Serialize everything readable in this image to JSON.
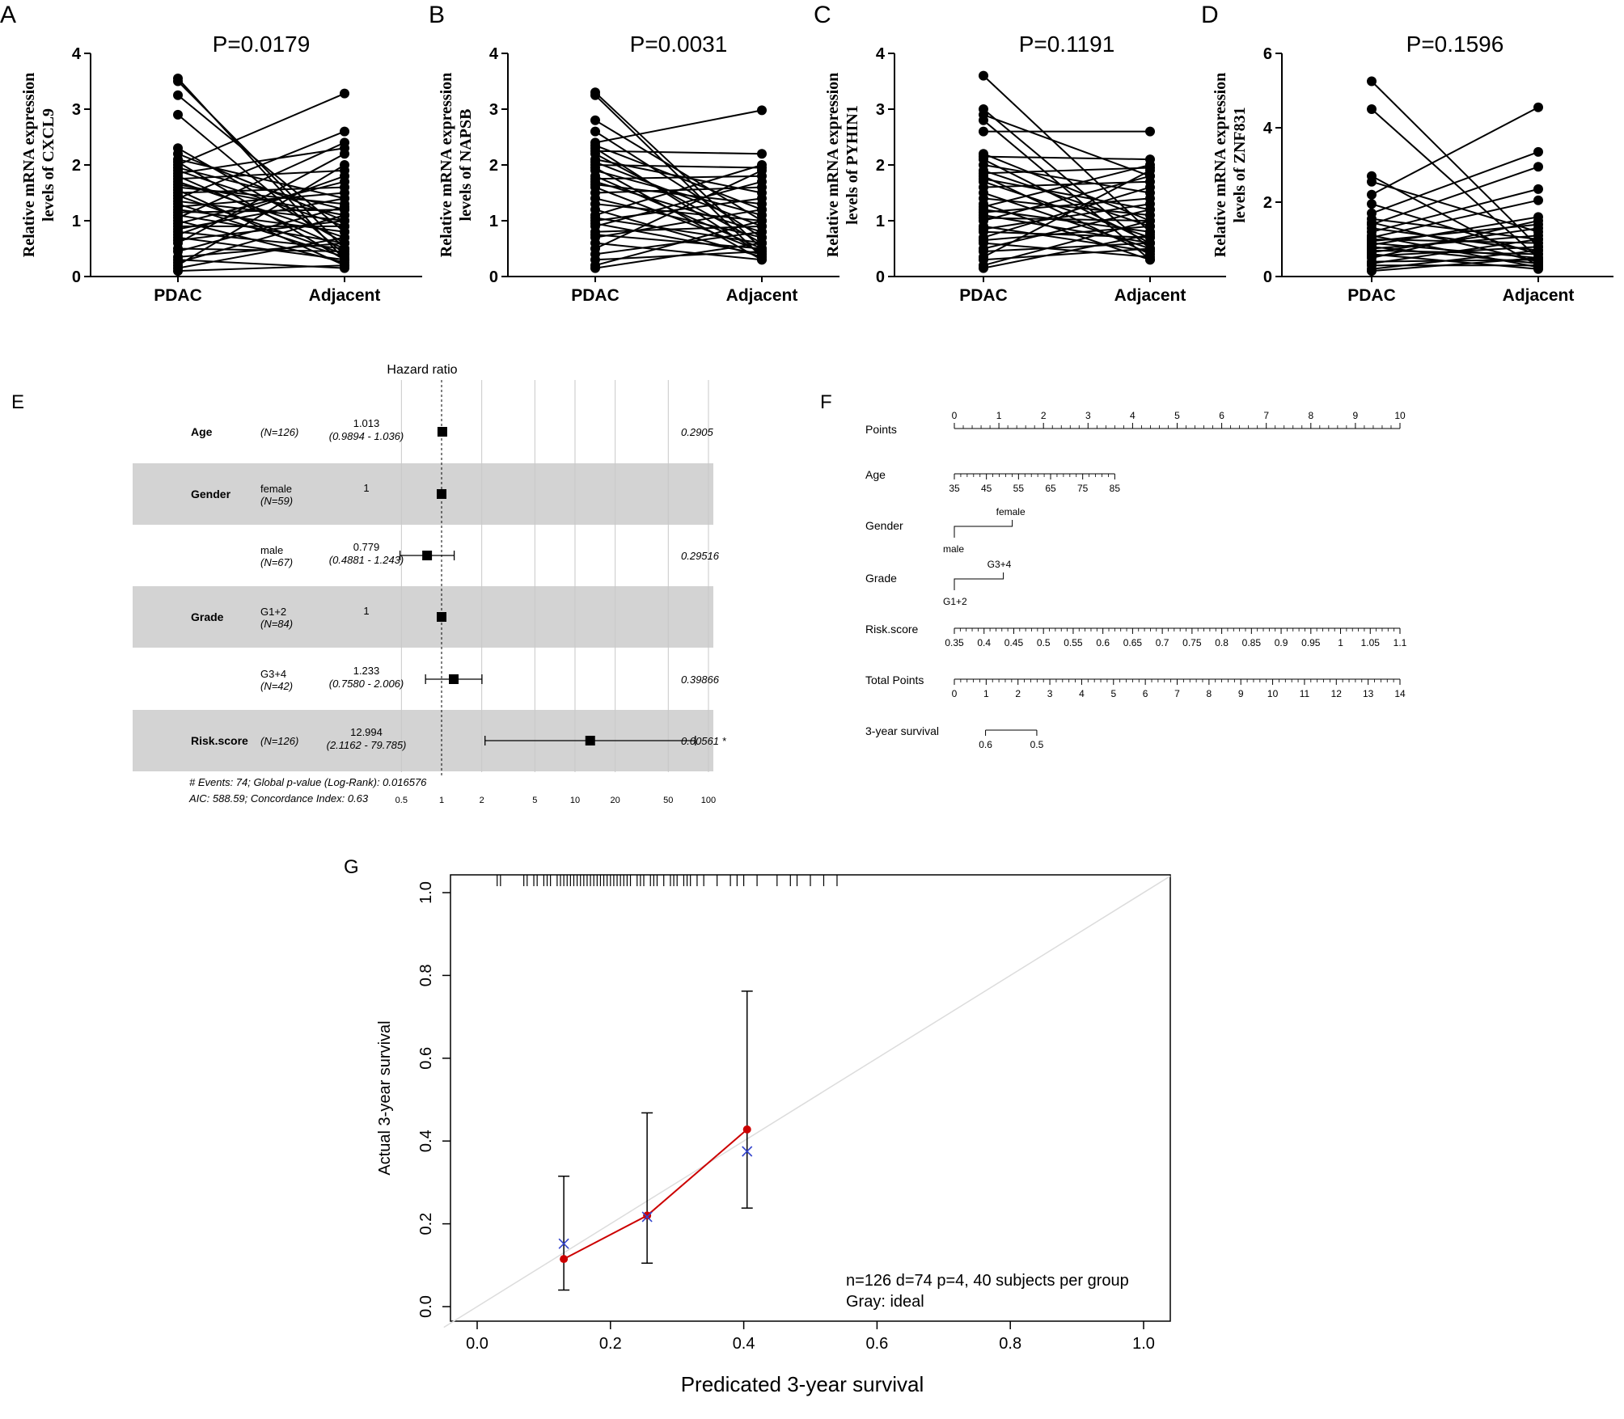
{
  "chart_data": [
    {
      "type": "paired-line",
      "panel_label": "A",
      "title": "P=0.0179",
      "ylabel_line1": "Relative mRNA expression",
      "ylabel_line2": "levels of CXCL9",
      "categories": [
        "PDAC",
        "Adjacent"
      ],
      "ylim": [
        0,
        4
      ],
      "yticks": [
        "0",
        "1",
        "2",
        "3",
        "4"
      ],
      "pairs": [
        [
          3.55,
          0.3
        ],
        [
          3.5,
          0.5
        ],
        [
          3.25,
          0.8
        ],
        [
          2.9,
          0.4
        ],
        [
          2.3,
          0.6
        ],
        [
          2.2,
          1.0
        ],
        [
          2.1,
          1.4
        ],
        [
          2.05,
          0.3
        ],
        [
          2.0,
          3.28
        ],
        [
          1.95,
          1.2
        ],
        [
          1.9,
          0.9
        ],
        [
          1.85,
          2.3
        ],
        [
          1.8,
          0.5
        ],
        [
          1.75,
          1.9
        ],
        [
          1.7,
          0.7
        ],
        [
          1.65,
          1.1
        ],
        [
          1.6,
          1.3
        ],
        [
          1.55,
          0.2
        ],
        [
          1.5,
          1.6
        ],
        [
          1.45,
          0.4
        ],
        [
          1.4,
          2.6
        ],
        [
          1.35,
          1.0
        ],
        [
          1.3,
          0.35
        ],
        [
          1.25,
          1.5
        ],
        [
          1.2,
          0.8
        ],
        [
          1.15,
          1.2
        ],
        [
          1.1,
          0.6
        ],
        [
          1.05,
          2.4
        ],
        [
          1.0,
          0.25
        ],
        [
          0.95,
          1.7
        ],
        [
          0.9,
          0.9
        ],
        [
          0.85,
          1.4
        ],
        [
          0.8,
          0.5
        ],
        [
          0.75,
          1.8
        ],
        [
          0.7,
          0.3
        ],
        [
          0.65,
          1.0
        ],
        [
          0.6,
          2.2
        ],
        [
          0.5,
          0.45
        ],
        [
          0.45,
          1.25
        ],
        [
          0.35,
          0.6
        ],
        [
          0.3,
          0.15
        ],
        [
          0.25,
          1.1
        ],
        [
          0.2,
          2.0
        ],
        [
          0.15,
          0.7
        ],
        [
          0.1,
          0.2
        ]
      ]
    },
    {
      "type": "paired-line",
      "panel_label": "B",
      "title": "P=0.0031",
      "ylabel_line1": "Relative mRNA expression",
      "ylabel_line2": "levels of NAPSB",
      "categories": [
        "PDAC",
        "Adjacent"
      ],
      "ylim": [
        0,
        4
      ],
      "yticks": [
        "0",
        "1",
        "2",
        "3",
        "4"
      ],
      "pairs": [
        [
          3.3,
          0.5
        ],
        [
          3.25,
          0.35
        ],
        [
          2.8,
          1.0
        ],
        [
          2.6,
          0.7
        ],
        [
          2.4,
          2.98
        ],
        [
          2.35,
          1.2
        ],
        [
          2.3,
          0.4
        ],
        [
          2.25,
          2.2
        ],
        [
          2.2,
          0.6
        ],
        [
          2.1,
          1.5
        ],
        [
          2.05,
          0.9
        ],
        [
          2.0,
          1.95
        ],
        [
          1.95,
          0.3
        ],
        [
          1.9,
          1.1
        ],
        [
          1.8,
          0.5
        ],
        [
          1.75,
          1.8
        ],
        [
          1.7,
          0.8
        ],
        [
          1.65,
          1.3
        ],
        [
          1.6,
          0.45
        ],
        [
          1.5,
          1.6
        ],
        [
          1.4,
          0.7
        ],
        [
          1.3,
          1.0
        ],
        [
          1.2,
          0.35
        ],
        [
          1.1,
          2.0
        ],
        [
          1.05,
          0.6
        ],
        [
          1.0,
          1.4
        ],
        [
          0.95,
          0.4
        ],
        [
          0.9,
          1.7
        ],
        [
          0.8,
          0.9
        ],
        [
          0.75,
          0.5
        ],
        [
          0.7,
          1.2
        ],
        [
          0.6,
          0.3
        ],
        [
          0.5,
          1.9
        ],
        [
          0.4,
          0.8
        ],
        [
          0.3,
          0.45
        ],
        [
          0.2,
          1.0
        ],
        [
          0.15,
          0.6
        ]
      ]
    },
    {
      "type": "paired-line",
      "panel_label": "C",
      "title": "P=0.1191",
      "ylabel_line1": "Relative mRNA expression",
      "ylabel_line2": "levels of PYHIN1",
      "categories": [
        "PDAC",
        "Adjacent"
      ],
      "ylim": [
        0,
        4
      ],
      "yticks": [
        "0",
        "1",
        "2",
        "3",
        "4"
      ],
      "pairs": [
        [
          3.6,
          0.8
        ],
        [
          3.0,
          0.5
        ],
        [
          2.9,
          1.8
        ],
        [
          2.8,
          0.3
        ],
        [
          2.6,
          2.6
        ],
        [
          2.2,
          1.0
        ],
        [
          2.15,
          2.1
        ],
        [
          2.1,
          0.6
        ],
        [
          2.0,
          1.5
        ],
        [
          1.9,
          0.9
        ],
        [
          1.85,
          1.95
        ],
        [
          1.8,
          0.4
        ],
        [
          1.75,
          1.2
        ],
        [
          1.7,
          0.7
        ],
        [
          1.6,
          1.7
        ],
        [
          1.5,
          0.5
        ],
        [
          1.4,
          1.1
        ],
        [
          1.3,
          0.3
        ],
        [
          1.25,
          2.0
        ],
        [
          1.2,
          0.8
        ],
        [
          1.15,
          1.4
        ],
        [
          1.1,
          0.6
        ],
        [
          1.05,
          1.0
        ],
        [
          1.0,
          1.8
        ],
        [
          0.9,
          0.45
        ],
        [
          0.85,
          1.3
        ],
        [
          0.8,
          0.7
        ],
        [
          0.7,
          1.6
        ],
        [
          0.65,
          0.9
        ],
        [
          0.6,
          0.35
        ],
        [
          0.5,
          1.2
        ],
        [
          0.45,
          0.6
        ],
        [
          0.35,
          1.9
        ],
        [
          0.3,
          0.5
        ],
        [
          0.2,
          1.0
        ],
        [
          0.15,
          0.75
        ]
      ]
    },
    {
      "type": "paired-line",
      "panel_label": "D",
      "title": "P=0.1596",
      "ylabel_line1": "Relative mRNA expression",
      "ylabel_line2": "levels of ZNF831",
      "categories": [
        "PDAC",
        "Adjacent"
      ],
      "ylim": [
        0,
        6
      ],
      "yticks": [
        "0",
        "2",
        "4",
        "6"
      ],
      "pairs": [
        [
          5.25,
          0.8
        ],
        [
          4.5,
          0.5
        ],
        [
          2.7,
          0.3
        ],
        [
          2.55,
          1.2
        ],
        [
          2.2,
          4.55
        ],
        [
          1.95,
          0.6
        ],
        [
          1.7,
          3.35
        ],
        [
          1.55,
          1.0
        ],
        [
          1.45,
          0.4
        ],
        [
          1.4,
          2.95
        ],
        [
          1.3,
          0.7
        ],
        [
          1.2,
          2.35
        ],
        [
          1.1,
          0.25
        ],
        [
          1.05,
          2.05
        ],
        [
          1.0,
          0.9
        ],
        [
          0.95,
          1.4
        ],
        [
          0.9,
          0.5
        ],
        [
          0.85,
          1.6
        ],
        [
          0.8,
          0.35
        ],
        [
          0.75,
          1.1
        ],
        [
          0.7,
          0.6
        ],
        [
          0.65,
          1.3
        ],
        [
          0.6,
          0.2
        ],
        [
          0.55,
          0.8
        ],
        [
          0.5,
          1.5
        ],
        [
          0.4,
          0.45
        ],
        [
          0.35,
          1.0
        ],
        [
          0.3,
          0.3
        ],
        [
          0.2,
          0.7
        ],
        [
          0.15,
          0.5
        ]
      ]
    },
    {
      "type": "forest",
      "panel_label": "E",
      "title": "Hazard ratio",
      "xscale": "log",
      "xlim": [
        0.5,
        100
      ],
      "xticks": [
        "0.5",
        "1",
        "2",
        "5",
        "10",
        "20",
        "50",
        "100"
      ],
      "rows": [
        {
          "variable": "Age",
          "level": "",
          "n": "(N=126)",
          "hr": 1.013,
          "hr_text": "1.013",
          "ci": [
            0.9894,
            1.036
          ],
          "ci_text": "(0.9894 - 1.036)",
          "p": "0.2905"
        },
        {
          "variable": "Gender",
          "level": "female",
          "n": "(N=59)",
          "hr": 1,
          "hr_text": "1",
          "ci": null,
          "ci_text": "",
          "p": ""
        },
        {
          "variable": "",
          "level": "male",
          "n": "(N=67)",
          "hr": 0.779,
          "hr_text": "0.779",
          "ci": [
            0.4881,
            1.243
          ],
          "ci_text": "(0.4881 - 1.243)",
          "p": "0.29516"
        },
        {
          "variable": "Grade",
          "level": "G1+2",
          "n": "(N=84)",
          "hr": 1,
          "hr_text": "1",
          "ci": null,
          "ci_text": "",
          "p": ""
        },
        {
          "variable": "",
          "level": "G3+4",
          "n": "(N=42)",
          "hr": 1.233,
          "hr_text": "1.233",
          "ci": [
            0.758,
            2.006
          ],
          "ci_text": "(0.7580 - 2.006)",
          "p": "0.39866"
        },
        {
          "variable": "Risk.score",
          "level": "",
          "n": "(N=126)",
          "hr": 12.994,
          "hr_text": "12.994",
          "ci": [
            2.1162,
            79.785
          ],
          "ci_text": "(2.1162 - 79.785)",
          "p": "0.00561 *"
        }
      ],
      "footnote1": "# Events: 74; Global p-value (Log-Rank): 0.016576",
      "footnote2": "AIC: 588.59; Concordance Index: 0.63"
    },
    {
      "type": "nomogram",
      "panel_label": "F",
      "rows": [
        {
          "label": "Points",
          "ticks": [
            "0",
            "1",
            "2",
            "3",
            "4",
            "5",
            "6",
            "7",
            "8",
            "9",
            "10"
          ],
          "span": [
            0,
            10
          ],
          "labels_above": true
        },
        {
          "label": "Age",
          "ticks": [
            "35",
            "45",
            "55",
            "65",
            "75",
            "85"
          ],
          "span": [
            0,
            3.6
          ],
          "labels_above": false
        },
        {
          "label": "Gender",
          "step_low": "male",
          "step_high": "female",
          "span": [
            0,
            1.3
          ]
        },
        {
          "label": "Grade",
          "step_low": "G1+2",
          "step_high": "G3+4",
          "span": [
            0,
            1.1
          ]
        },
        {
          "label": "Risk.score",
          "ticks": [
            "0.35",
            "0.4",
            "0.45",
            "0.5",
            "0.55",
            "0.6",
            "0.65",
            "0.7",
            "0.75",
            "0.8",
            "0.85",
            "0.9",
            "0.95",
            "1",
            "1.05",
            "1.1"
          ],
          "span": [
            0,
            10
          ],
          "labels_above": false
        },
        {
          "label": "Total Points",
          "ticks": [
            "0",
            "1",
            "2",
            "3",
            "4",
            "5",
            "6",
            "7",
            "8",
            "9",
            "10",
            "11",
            "12",
            "13",
            "14"
          ],
          "span": [
            0,
            10
          ],
          "labels_above": false
        },
        {
          "label": "3-year survival",
          "ticks": [
            "0.6",
            "0.5"
          ],
          "span": [
            0.7,
            1.85
          ],
          "labels_above": false
        }
      ]
    },
    {
      "type": "calibration",
      "panel_label": "G",
      "xlabel": "Predicated 3-year survival",
      "ylabel": "Actual 3-year survival",
      "xlim": [
        0,
        1
      ],
      "ylim": [
        0,
        1
      ],
      "xticks": [
        "0.0",
        "0.2",
        "0.4",
        "0.6",
        "0.8",
        "1.0"
      ],
      "yticks": [
        "0.0",
        "0.2",
        "0.4",
        "0.6",
        "0.8",
        "1.0"
      ],
      "points": [
        {
          "x": 0.13,
          "y": 0.115,
          "lo": 0.04,
          "hi": 0.315,
          "bc": 0.152
        },
        {
          "x": 0.255,
          "y": 0.22,
          "lo": 0.105,
          "hi": 0.468,
          "bc": 0.217
        },
        {
          "x": 0.405,
          "y": 0.428,
          "lo": 0.238,
          "hi": 0.762,
          "bc": 0.375
        }
      ],
      "rug": [
        0.03,
        0.035,
        0.07,
        0.075,
        0.085,
        0.09,
        0.1,
        0.105,
        0.11,
        0.12,
        0.125,
        0.13,
        0.135,
        0.14,
        0.145,
        0.15,
        0.155,
        0.16,
        0.165,
        0.17,
        0.175,
        0.18,
        0.185,
        0.19,
        0.195,
        0.2,
        0.205,
        0.21,
        0.215,
        0.22,
        0.225,
        0.23,
        0.24,
        0.245,
        0.25,
        0.26,
        0.265,
        0.27,
        0.28,
        0.29,
        0.295,
        0.3,
        0.31,
        0.315,
        0.32,
        0.33,
        0.34,
        0.36,
        0.38,
        0.39,
        0.4,
        0.42,
        0.45,
        0.47,
        0.48,
        0.5,
        0.52,
        0.54
      ],
      "legend_line1": "n=126 d=74 p=4, 40 subjects per group",
      "legend_line2": "Gray: ideal",
      "colors": {
        "observed": "#cc0000",
        "corrected": "#3344cc",
        "ideal": "#dcdcdc"
      }
    }
  ]
}
